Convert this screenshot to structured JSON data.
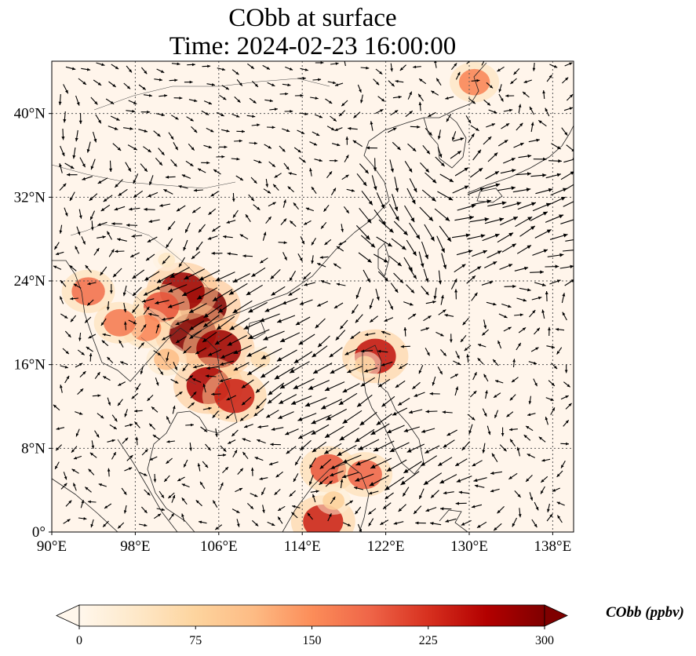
{
  "title_line1": "CObb at surface",
  "title_line2": "Time: 2024-02-23 16:00:00",
  "map": {
    "lon_range": [
      90,
      140
    ],
    "lat_range": [
      0,
      45
    ],
    "lon_ticks": [
      {
        "value": 90,
        "label": "90°E"
      },
      {
        "value": 98,
        "label": "98°E"
      },
      {
        "value": 106,
        "label": "106°E"
      },
      {
        "value": 114,
        "label": "114°E"
      },
      {
        "value": 122,
        "label": "122°E"
      },
      {
        "value": 130,
        "label": "130°E"
      },
      {
        "value": 138,
        "label": "138°E"
      }
    ],
    "lat_ticks": [
      {
        "value": 0,
        "label": "0°"
      },
      {
        "value": 8,
        "label": "8°N"
      },
      {
        "value": 16,
        "label": "16°N"
      },
      {
        "value": 24,
        "label": "24°N"
      },
      {
        "value": 32,
        "label": "32°N"
      },
      {
        "value": 40,
        "label": "40°N"
      }
    ],
    "gridlines": "dotted",
    "background_color": "#fff5eb",
    "plumes": [
      {
        "lon": 104.5,
        "lat": 21.5,
        "value": 300
      },
      {
        "lon": 103.5,
        "lat": 19.0,
        "value": 300
      },
      {
        "lon": 106.0,
        "lat": 17.5,
        "value": 280
      },
      {
        "lon": 105.0,
        "lat": 14.0,
        "value": 270
      },
      {
        "lon": 107.5,
        "lat": 13.0,
        "value": 240
      },
      {
        "lon": 102.5,
        "lat": 23.0,
        "value": 280
      },
      {
        "lon": 100.5,
        "lat": 21.5,
        "value": 200
      },
      {
        "lon": 99.0,
        "lat": 19.5,
        "value": 160
      },
      {
        "lon": 93.5,
        "lat": 23.0,
        "value": 180
      },
      {
        "lon": 96.5,
        "lat": 20.0,
        "value": 170
      },
      {
        "lon": 101.0,
        "lat": 16.5,
        "value": 110
      },
      {
        "lon": 110.0,
        "lat": 16.5,
        "value": 60
      },
      {
        "lon": 121.0,
        "lat": 16.8,
        "value": 250
      },
      {
        "lon": 120.0,
        "lat": 16.0,
        "value": 70
      },
      {
        "lon": 116.0,
        "lat": 1.0,
        "value": 240
      },
      {
        "lon": 116.5,
        "lat": 6.0,
        "value": 200
      },
      {
        "lon": 120.0,
        "lat": 5.5,
        "value": 190
      },
      {
        "lon": 117.0,
        "lat": 3.0,
        "value": 80
      },
      {
        "lon": 130.5,
        "lat": 43.0,
        "value": 160
      },
      {
        "lon": 101.0,
        "lat": 26.0,
        "value": 40
      }
    ],
    "wind_field": "quiver arrows, strong northeasterly flow over the South China Sea and westerly flow over Japan"
  },
  "colorbar": {
    "label": "CObb (ppbv)",
    "colormap": "OrRd",
    "range": [
      0,
      300
    ],
    "extend": "both",
    "ticks": [
      {
        "value": 0,
        "label": "0"
      },
      {
        "value": 75,
        "label": "75"
      },
      {
        "value": 150,
        "label": "150"
      },
      {
        "value": 225,
        "label": "225"
      },
      {
        "value": 300,
        "label": "300"
      }
    ],
    "colors": [
      "#fff7ec",
      "#fee8c8",
      "#fdd49e",
      "#fdbb84",
      "#fc8d59",
      "#ef6548",
      "#d7301f",
      "#b30000",
      "#7f0000"
    ]
  }
}
